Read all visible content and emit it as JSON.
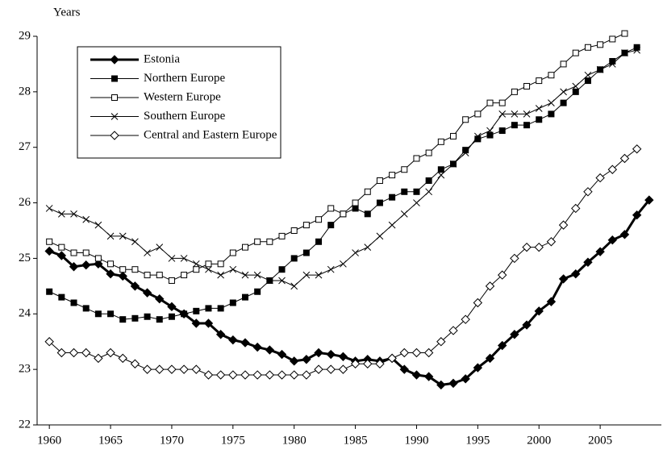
{
  "chart_data": {
    "type": "line",
    "y_label": "Years",
    "x": [
      1960,
      1961,
      1962,
      1963,
      1964,
      1965,
      1966,
      1967,
      1968,
      1969,
      1970,
      1971,
      1972,
      1973,
      1974,
      1975,
      1976,
      1977,
      1978,
      1979,
      1980,
      1981,
      1982,
      1983,
      1984,
      1985,
      1986,
      1987,
      1988,
      1989,
      1990,
      1991,
      1992,
      1993,
      1994,
      1995,
      1996,
      1997,
      1998,
      1999,
      2000,
      2001,
      2002,
      2003,
      2004,
      2005,
      2006,
      2007,
      2008,
      2009
    ],
    "xlim": [
      1959,
      2010
    ],
    "xticks": [
      1960,
      1965,
      1970,
      1975,
      1980,
      1985,
      1990,
      1995,
      2000,
      2005
    ],
    "ylim": [
      22,
      29
    ],
    "yticks": [
      22,
      23,
      24,
      25,
      26,
      27,
      28,
      29
    ],
    "grid": false,
    "legend": "top-left",
    "series": [
      {
        "name": "Estonia",
        "color": "#000000",
        "marker": "diamond-filled",
        "line_width": 3,
        "values": [
          25.13,
          25.05,
          24.85,
          24.88,
          24.9,
          24.72,
          24.68,
          24.5,
          24.38,
          24.27,
          24.13,
          24.0,
          23.83,
          23.83,
          23.63,
          23.53,
          23.48,
          23.4,
          23.35,
          23.27,
          23.15,
          23.18,
          23.3,
          23.27,
          23.23,
          23.15,
          23.18,
          23.15,
          23.2,
          23.0,
          22.9,
          22.87,
          22.72,
          22.75,
          22.83,
          23.03,
          23.2,
          23.43,
          23.63,
          23.8,
          24.05,
          24.22,
          24.63,
          24.72,
          24.93,
          25.12,
          25.33,
          25.43,
          25.78,
          26.05
        ]
      },
      {
        "name": "Northern Europe",
        "color": "#000000",
        "marker": "square-filled",
        "line_width": 1,
        "values": [
          24.4,
          24.3,
          24.2,
          24.1,
          24.0,
          24.0,
          23.9,
          23.92,
          23.95,
          23.9,
          23.95,
          24.0,
          24.05,
          24.1,
          24.1,
          24.2,
          24.3,
          24.4,
          24.6,
          24.8,
          25.0,
          25.1,
          25.3,
          25.6,
          25.8,
          25.9,
          25.8,
          26.0,
          26.1,
          26.2,
          26.2,
          26.4,
          26.6,
          26.7,
          26.95,
          27.15,
          27.22,
          27.3,
          27.4,
          27.4,
          27.5,
          27.6,
          27.8,
          28.0,
          28.2,
          28.4,
          28.55,
          28.7,
          28.8,
          null
        ]
      },
      {
        "name": "Western Europe",
        "color": "#000000",
        "marker": "square-open",
        "line_width": 1,
        "values": [
          25.3,
          25.2,
          25.1,
          25.1,
          25.0,
          24.9,
          24.8,
          24.8,
          24.7,
          24.7,
          24.6,
          24.7,
          24.8,
          24.9,
          24.9,
          25.1,
          25.2,
          25.3,
          25.3,
          25.4,
          25.5,
          25.6,
          25.7,
          25.9,
          25.8,
          26.0,
          26.2,
          26.4,
          26.5,
          26.6,
          26.8,
          26.9,
          27.1,
          27.2,
          27.5,
          27.6,
          27.8,
          27.8,
          28.0,
          28.1,
          28.2,
          28.3,
          28.5,
          28.7,
          28.8,
          28.85,
          28.95,
          29.05,
          null,
          null
        ]
      },
      {
        "name": "Southern Europe",
        "color": "#000000",
        "marker": "x",
        "line_width": 1,
        "values": [
          25.9,
          25.8,
          25.8,
          25.7,
          25.6,
          25.4,
          25.4,
          25.3,
          25.1,
          25.2,
          25.0,
          25.0,
          24.9,
          24.8,
          24.7,
          24.8,
          24.7,
          24.7,
          24.6,
          24.6,
          24.5,
          24.7,
          24.7,
          24.8,
          24.9,
          25.1,
          25.2,
          25.4,
          25.6,
          25.8,
          26.0,
          26.2,
          26.5,
          26.7,
          26.9,
          27.2,
          27.3,
          27.6,
          27.6,
          27.6,
          27.7,
          27.8,
          28.0,
          28.1,
          28.3,
          28.4,
          28.5,
          28.7,
          28.75,
          null
        ]
      },
      {
        "name": "Central and Eastern Europe",
        "color": "#000000",
        "marker": "diamond-open",
        "line_width": 1,
        "values": [
          23.5,
          23.3,
          23.3,
          23.3,
          23.2,
          23.3,
          23.2,
          23.1,
          23.0,
          23.0,
          23.0,
          23.0,
          23.0,
          22.9,
          22.9,
          22.9,
          22.9,
          22.9,
          22.9,
          22.9,
          22.9,
          22.9,
          23.0,
          23.0,
          23.0,
          23.1,
          23.1,
          23.1,
          23.2,
          23.3,
          23.3,
          23.3,
          23.5,
          23.7,
          23.9,
          24.2,
          24.5,
          24.7,
          25.0,
          25.2,
          25.2,
          25.3,
          25.6,
          25.9,
          26.2,
          26.45,
          26.6,
          26.8,
          26.97,
          null
        ]
      }
    ]
  }
}
